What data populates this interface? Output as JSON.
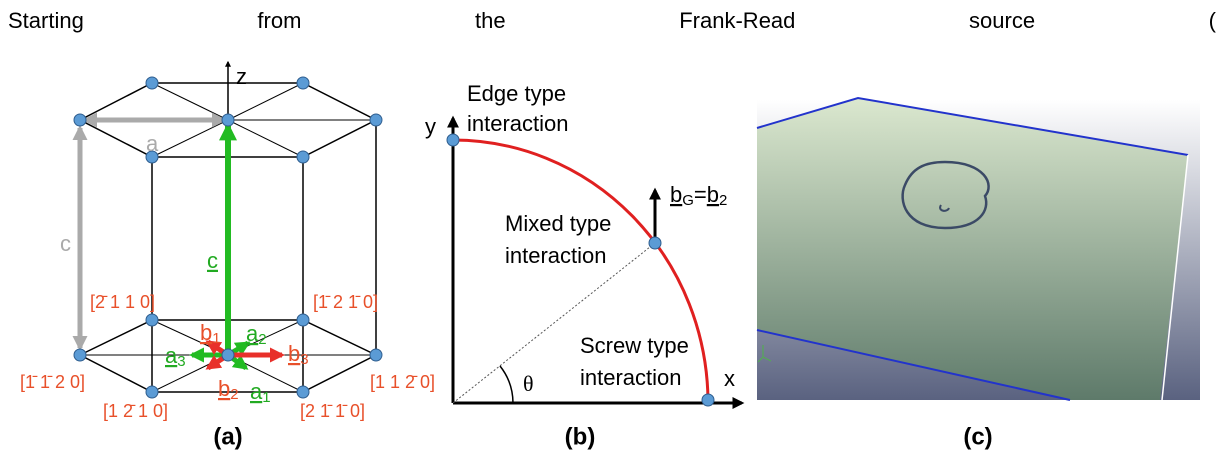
{
  "header": {
    "text": "Starting from the Frank-Read source ("
  },
  "panels": [
    {
      "label": "(a)",
      "axis": "z",
      "lattice_a": "a",
      "lattice_c": "c",
      "c_vector": "c",
      "directions": [
        "[2̄ 1 1 0]",
        "[1̄ 2 1̄ 0]",
        "[1̄ 1̄ 2 0]",
        "[1 1 2̄ 0]",
        "[1 2̄ 1 0]",
        "[2 1̄ 1̄ 0]"
      ],
      "a_vectors": [
        {
          "base": "a",
          "sub": "1"
        },
        {
          "base": "a",
          "sub": "2"
        },
        {
          "base": "a",
          "sub": "3"
        }
      ],
      "b_vectors": [
        {
          "base": "b",
          "sub": "1"
        },
        {
          "base": "b",
          "sub": "2"
        },
        {
          "base": "b",
          "sub": "3"
        }
      ]
    },
    {
      "label": "(b)",
      "x": "x",
      "y": "y",
      "edge": [
        "Edge type",
        "interaction"
      ],
      "mixed": [
        "Mixed type",
        "interaction"
      ],
      "screw": [
        "Screw type",
        "interaction"
      ],
      "angle": "θ",
      "burgers": {
        "lhs": {
          "base": "b",
          "sub": "G"
        },
        "eq": "=",
        "rhs": {
          "base": "b",
          "sub": "2"
        }
      }
    },
    {
      "label": "(c)"
    }
  ]
}
